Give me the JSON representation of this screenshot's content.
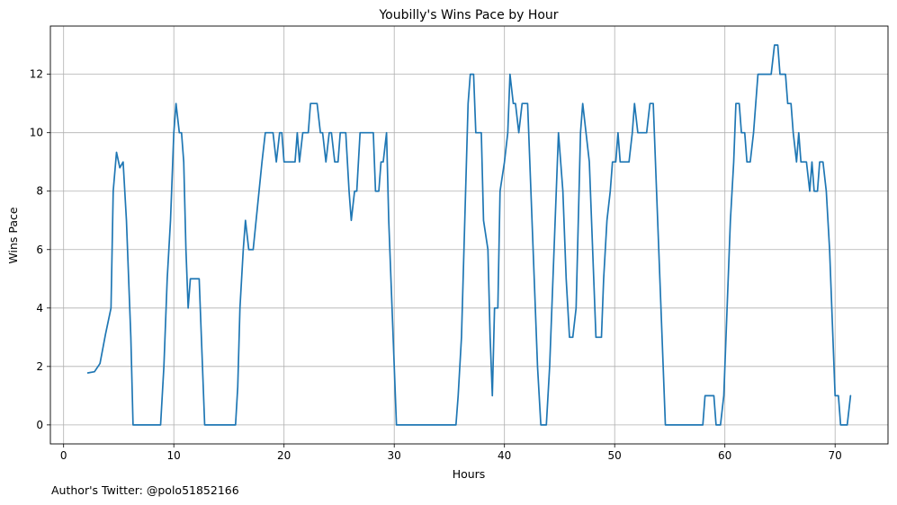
{
  "chart_data": {
    "type": "line",
    "title": "Youbilly's Wins Pace by Hour",
    "xlabel": "Hours",
    "ylabel": "Wins Pace",
    "xlim": [
      -1.2,
      74.8
    ],
    "ylim": [
      -0.65,
      13.65
    ],
    "xticks": [
      0,
      10,
      20,
      30,
      40,
      50,
      60,
      70
    ],
    "yticks": [
      0,
      2,
      4,
      6,
      8,
      10,
      12
    ],
    "grid": true,
    "color": "#1f77b4",
    "series": [
      {
        "points": [
          [
            2.2,
            1.78
          ],
          [
            2.8,
            1.82
          ],
          [
            3.3,
            2.1
          ],
          [
            3.8,
            3.1
          ],
          [
            4.3,
            4.0
          ],
          [
            4.5,
            8.0
          ],
          [
            4.8,
            9.33
          ],
          [
            5.1,
            8.8
          ],
          [
            5.4,
            9.0
          ],
          [
            5.7,
            7.0
          ],
          [
            6.1,
            3.0
          ],
          [
            6.3,
            0.0
          ],
          [
            8.8,
            0.0
          ],
          [
            9.1,
            2.0
          ],
          [
            9.4,
            5.0
          ],
          [
            9.7,
            7.0
          ],
          [
            10.0,
            10.0
          ],
          [
            10.2,
            11.0
          ],
          [
            10.5,
            10.0
          ],
          [
            10.7,
            10.0
          ],
          [
            10.9,
            9.0
          ],
          [
            11.1,
            6.0
          ],
          [
            11.3,
            4.0
          ],
          [
            11.5,
            5.0
          ],
          [
            12.3,
            5.0
          ],
          [
            12.6,
            2.0
          ],
          [
            12.8,
            0.0
          ],
          [
            15.6,
            0.0
          ],
          [
            15.8,
            1.3
          ],
          [
            16.0,
            4.0
          ],
          [
            16.3,
            6.0
          ],
          [
            16.5,
            7.0
          ],
          [
            16.8,
            6.0
          ],
          [
            17.2,
            6.0
          ],
          [
            17.6,
            7.5
          ],
          [
            18.0,
            9.0
          ],
          [
            18.3,
            10.0
          ],
          [
            19.0,
            10.0
          ],
          [
            19.3,
            9.0
          ],
          [
            19.6,
            10.0
          ],
          [
            19.8,
            10.0
          ],
          [
            20.0,
            9.0
          ],
          [
            21.0,
            9.0
          ],
          [
            21.2,
            10.0
          ],
          [
            21.4,
            9.0
          ],
          [
            21.7,
            10.0
          ],
          [
            22.2,
            10.0
          ],
          [
            22.4,
            11.0
          ],
          [
            23.0,
            11.0
          ],
          [
            23.3,
            10.0
          ],
          [
            23.5,
            10.0
          ],
          [
            23.8,
            9.0
          ],
          [
            24.1,
            10.0
          ],
          [
            24.3,
            10.0
          ],
          [
            24.6,
            9.0
          ],
          [
            24.9,
            9.0
          ],
          [
            25.1,
            10.0
          ],
          [
            25.6,
            10.0
          ],
          [
            25.9,
            8.0
          ],
          [
            26.1,
            7.0
          ],
          [
            26.4,
            8.0
          ],
          [
            26.6,
            8.0
          ],
          [
            26.9,
            10.0
          ],
          [
            28.1,
            10.0
          ],
          [
            28.3,
            8.0
          ],
          [
            28.6,
            8.0
          ],
          [
            28.8,
            9.0
          ],
          [
            29.0,
            9.0
          ],
          [
            29.3,
            10.0
          ],
          [
            29.5,
            7.0
          ],
          [
            29.8,
            4.0
          ],
          [
            30.0,
            2.0
          ],
          [
            30.2,
            0.0
          ],
          [
            35.6,
            0.0
          ],
          [
            35.8,
            1.0
          ],
          [
            36.1,
            3.0
          ],
          [
            36.4,
            7.0
          ],
          [
            36.7,
            11.0
          ],
          [
            36.9,
            12.0
          ],
          [
            37.2,
            12.0
          ],
          [
            37.4,
            10.0
          ],
          [
            37.9,
            10.0
          ],
          [
            38.1,
            7.0
          ],
          [
            38.5,
            6.0
          ],
          [
            38.7,
            3.0
          ],
          [
            38.9,
            1.0
          ],
          [
            39.1,
            4.0
          ],
          [
            39.4,
            4.0
          ],
          [
            39.6,
            8.0
          ],
          [
            40.0,
            9.0
          ],
          [
            40.3,
            10.0
          ],
          [
            40.5,
            12.0
          ],
          [
            40.8,
            11.0
          ],
          [
            41.0,
            11.0
          ],
          [
            41.3,
            10.0
          ],
          [
            41.6,
            11.0
          ],
          [
            42.1,
            11.0
          ],
          [
            42.4,
            8.0
          ],
          [
            42.7,
            5.0
          ],
          [
            43.0,
            2.0
          ],
          [
            43.3,
            0.0
          ],
          [
            43.8,
            0.0
          ],
          [
            44.1,
            2.0
          ],
          [
            44.4,
            5.0
          ],
          [
            44.7,
            8.0
          ],
          [
            44.9,
            10.0
          ],
          [
            45.1,
            9.0
          ],
          [
            45.3,
            8.0
          ],
          [
            45.6,
            5.0
          ],
          [
            45.9,
            3.0
          ],
          [
            46.2,
            3.0
          ],
          [
            46.5,
            4.0
          ],
          [
            46.7,
            7.0
          ],
          [
            46.9,
            10.0
          ],
          [
            47.1,
            11.0
          ],
          [
            47.4,
            10.0
          ],
          [
            47.7,
            9.0
          ],
          [
            48.0,
            6.0
          ],
          [
            48.3,
            3.0
          ],
          [
            48.8,
            3.0
          ],
          [
            49.0,
            5.0
          ],
          [
            49.3,
            7.0
          ],
          [
            49.6,
            8.0
          ],
          [
            49.8,
            9.0
          ],
          [
            50.1,
            9.0
          ],
          [
            50.3,
            10.0
          ],
          [
            50.5,
            9.0
          ],
          [
            51.3,
            9.0
          ],
          [
            51.6,
            10.0
          ],
          [
            51.8,
            11.0
          ],
          [
            52.1,
            10.0
          ],
          [
            52.9,
            10.0
          ],
          [
            53.2,
            11.0
          ],
          [
            53.5,
            11.0
          ],
          [
            53.8,
            8.0
          ],
          [
            54.1,
            5.0
          ],
          [
            54.4,
            2.0
          ],
          [
            54.6,
            0.0
          ],
          [
            58.0,
            0.0
          ],
          [
            58.2,
            1.0
          ],
          [
            59.0,
            1.0
          ],
          [
            59.2,
            0.0
          ],
          [
            59.6,
            0.0
          ],
          [
            59.9,
            1.0
          ],
          [
            60.2,
            4.0
          ],
          [
            60.5,
            7.0
          ],
          [
            60.8,
            9.0
          ],
          [
            61.0,
            11.0
          ],
          [
            61.3,
            11.0
          ],
          [
            61.5,
            10.0
          ],
          [
            61.8,
            10.0
          ],
          [
            62.0,
            9.0
          ],
          [
            62.3,
            9.0
          ],
          [
            62.6,
            10.0
          ],
          [
            62.8,
            11.0
          ],
          [
            63.0,
            12.0
          ],
          [
            64.0,
            12.0
          ],
          [
            64.2,
            12.0
          ],
          [
            64.5,
            13.0
          ],
          [
            64.8,
            13.0
          ],
          [
            65.0,
            12.0
          ],
          [
            65.5,
            12.0
          ],
          [
            65.7,
            11.0
          ],
          [
            66.0,
            11.0
          ],
          [
            66.2,
            10.0
          ],
          [
            66.5,
            9.0
          ],
          [
            66.7,
            10.0
          ],
          [
            66.9,
            9.0
          ],
          [
            67.4,
            9.0
          ],
          [
            67.7,
            8.0
          ],
          [
            67.9,
            9.0
          ],
          [
            68.1,
            8.0
          ],
          [
            68.4,
            8.0
          ],
          [
            68.6,
            9.0
          ],
          [
            68.9,
            9.0
          ],
          [
            69.2,
            8.0
          ],
          [
            69.5,
            6.0
          ],
          [
            69.8,
            3.0
          ],
          [
            70.0,
            1.0
          ],
          [
            70.3,
            1.0
          ],
          [
            70.5,
            0.0
          ],
          [
            71.1,
            0.0
          ],
          [
            71.4,
            1.0
          ]
        ]
      }
    ]
  },
  "footer": {
    "credit": "Author's Twitter: @polo51852166"
  }
}
